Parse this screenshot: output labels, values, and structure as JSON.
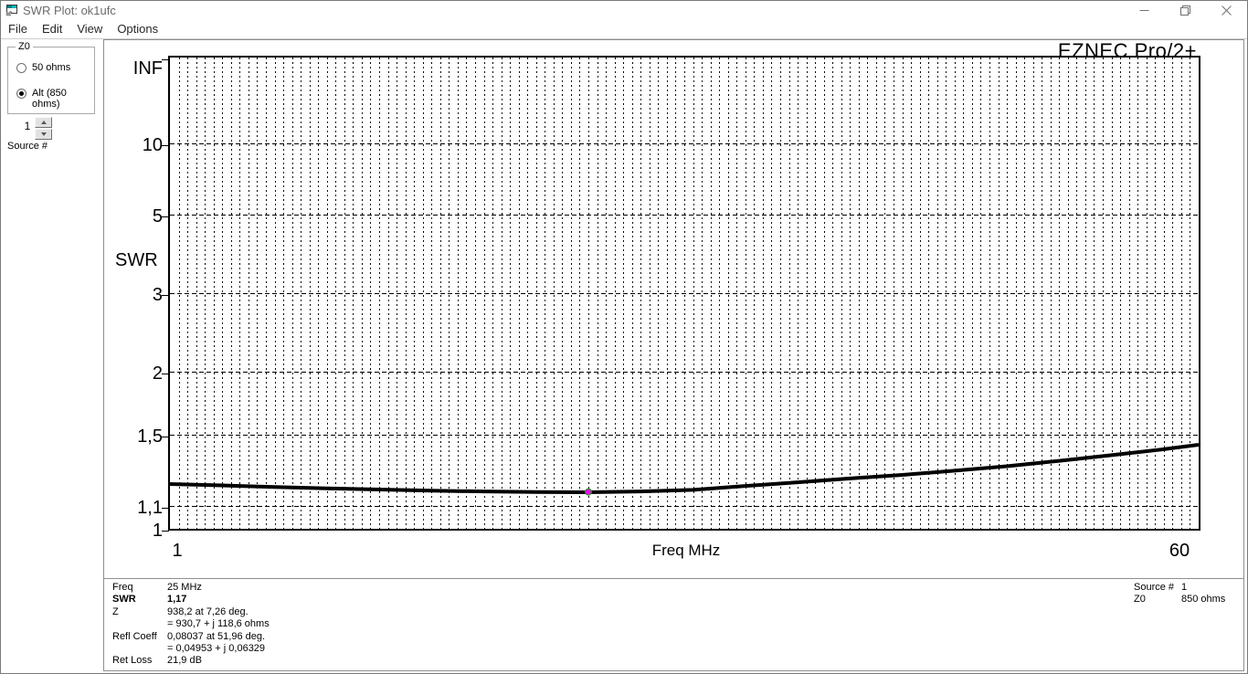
{
  "window": {
    "title": "SWR Plot: ok1ufc",
    "icon": "form-window-icon",
    "controls": {
      "minimize": "minimize",
      "restore": "restore",
      "close": "close"
    }
  },
  "menu": {
    "items": [
      "File",
      "Edit",
      "View",
      "Options"
    ]
  },
  "left_panel": {
    "z0_group": {
      "caption": "Z0",
      "options": [
        {
          "label": "50 ohms",
          "selected": false
        },
        {
          "label": "Alt (850 ohms)",
          "selected": true
        }
      ]
    },
    "source_spinner": {
      "value": "1",
      "label": "Source #"
    }
  },
  "brand": "EZNEC Pro/2+",
  "chart_data": {
    "type": "line",
    "title": "EZNEC Pro/2+ SWR plot",
    "xlabel": "Freq MHz",
    "ylabel": "SWR",
    "x_range": [
      1,
      60
    ],
    "x_grid_step_mhz": 0.5,
    "y_scale": "linear in reflection coefficient (SWR-1)/(SWR+1); INF at top",
    "xticks": [
      {
        "label": "1",
        "f": 1
      },
      {
        "label": "60",
        "f": 60
      }
    ],
    "yticks": [
      {
        "label": "INF",
        "swr": null,
        "gridline": false
      },
      {
        "label": "10",
        "swr": 10,
        "gridline": true
      },
      {
        "label": "5",
        "swr": 5,
        "gridline": true
      },
      {
        "label": "3",
        "swr": 3,
        "gridline": true
      },
      {
        "label": "2",
        "swr": 2,
        "gridline": true
      },
      {
        "label": "1,5",
        "swr": 1.5,
        "gridline": true
      },
      {
        "label": "1,1",
        "swr": 1.1,
        "gridline": true
      },
      {
        "label": "1",
        "swr": 1,
        "gridline": false
      }
    ],
    "series": [
      {
        "name": "SWR",
        "points": [
          [
            1,
            1.21
          ],
          [
            4,
            1.203
          ],
          [
            7,
            1.195
          ],
          [
            10,
            1.188
          ],
          [
            13,
            1.182
          ],
          [
            16,
            1.176
          ],
          [
            19,
            1.172
          ],
          [
            22,
            1.169
          ],
          [
            25,
            1.168
          ],
          [
            28,
            1.172
          ],
          [
            31,
            1.18
          ],
          [
            34,
            1.2
          ],
          [
            37,
            1.219
          ],
          [
            40,
            1.239
          ],
          [
            43,
            1.258
          ],
          [
            46,
            1.281
          ],
          [
            49,
            1.306
          ],
          [
            52,
            1.337
          ],
          [
            55,
            1.37
          ],
          [
            58,
            1.406
          ],
          [
            60,
            1.434
          ]
        ]
      }
    ],
    "marker": {
      "f": 25,
      "swr": 1.17,
      "color": "#ff00ff",
      "ring_color": "#00aa00"
    },
    "colors": {
      "curve": "#000000",
      "grid": "#000000"
    },
    "legend": null
  },
  "readout": {
    "left_rows": [
      {
        "label": "Freq",
        "value": "25 MHz",
        "bold": false
      },
      {
        "label": "SWR",
        "value": "1,17",
        "bold": true
      },
      {
        "label": "Z",
        "value": "938,2 at 7,26 deg.",
        "bold": false
      },
      {
        "label": "",
        "value": "= 930,7 + j 118,6 ohms",
        "bold": false
      },
      {
        "label": "Refl Coeff",
        "value": "0,08037 at 51,96 deg.",
        "bold": false
      },
      {
        "label": "",
        "value": "= 0,04953 + j 0,06329",
        "bold": false
      },
      {
        "label": "Ret Loss",
        "value": "21,9 dB",
        "bold": false
      }
    ],
    "right_rows": [
      {
        "label": "Source #",
        "value": "1",
        "bold": false
      },
      {
        "label": "Z0",
        "value": "850 ohms",
        "bold": false
      }
    ]
  }
}
